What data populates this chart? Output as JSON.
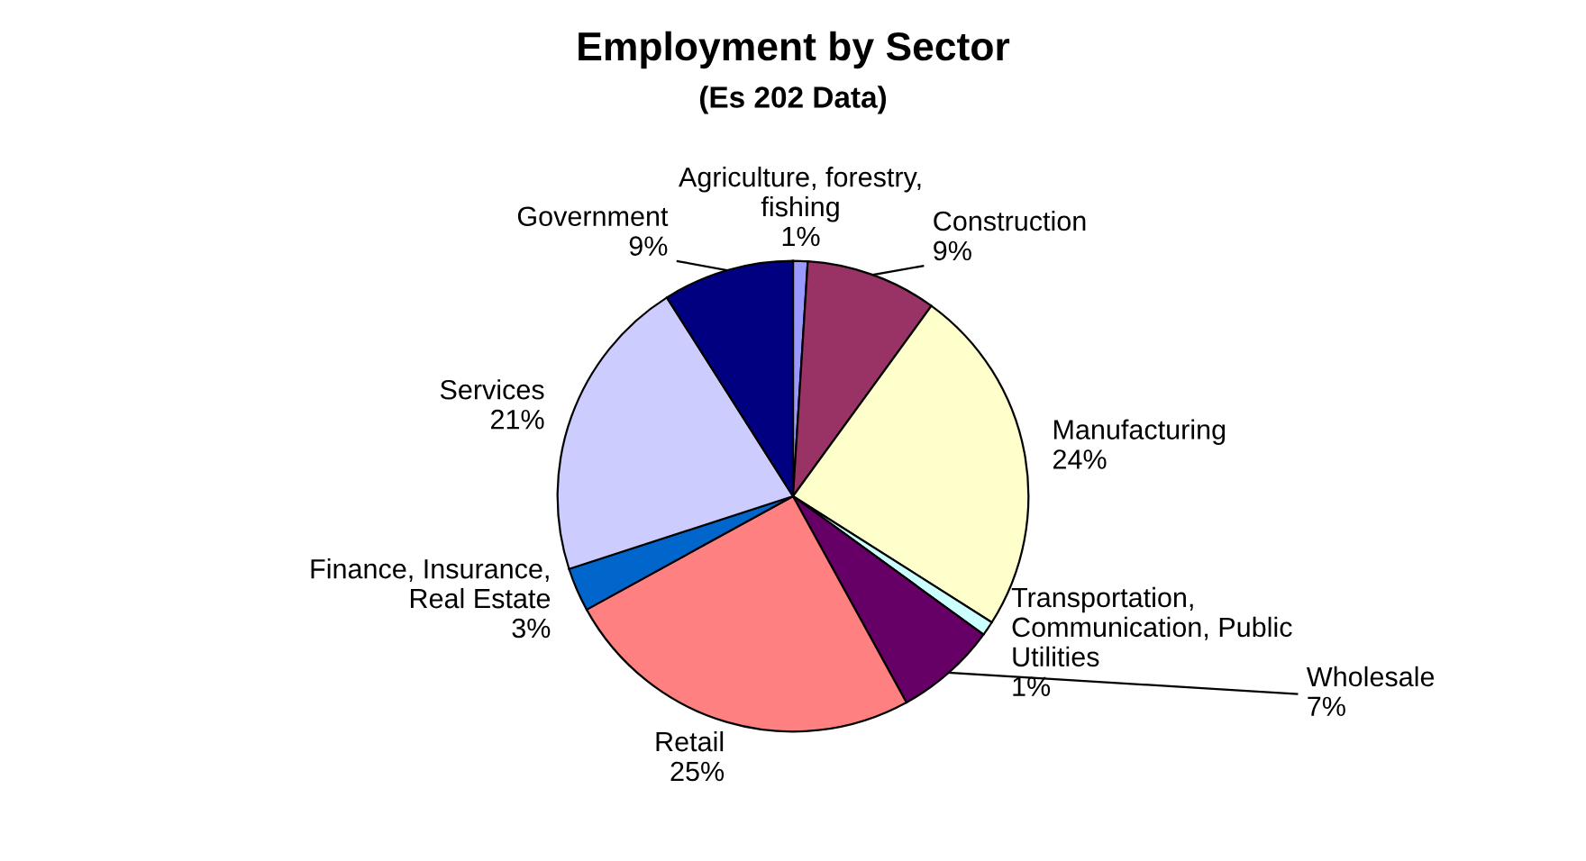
{
  "chart_data": {
    "type": "pie",
    "title": "Employment by Sector",
    "subtitle": "(Es 202 Data)",
    "categories": [
      "Agriculture, forestry,\nfishing",
      "Construction",
      "Manufacturing",
      "Transportation,\nCommunication, Public\nUtilities",
      "Wholesale",
      "Retail",
      "Finance, Insurance,\nReal Estate",
      "Services",
      "Government"
    ],
    "values": [
      1,
      9,
      24,
      1,
      7,
      25,
      3,
      21,
      9
    ],
    "value_labels": [
      "1%",
      "9%",
      "24%",
      "1%",
      "7%",
      "25%",
      "3%",
      "21%",
      "9%"
    ],
    "colors": [
      "#9999ff",
      "#993366",
      "#ffffcc",
      "#ccffff",
      "#660066",
      "#ff8080",
      "#0066cc",
      "#ccccff",
      "#000080"
    ],
    "legend": false
  }
}
